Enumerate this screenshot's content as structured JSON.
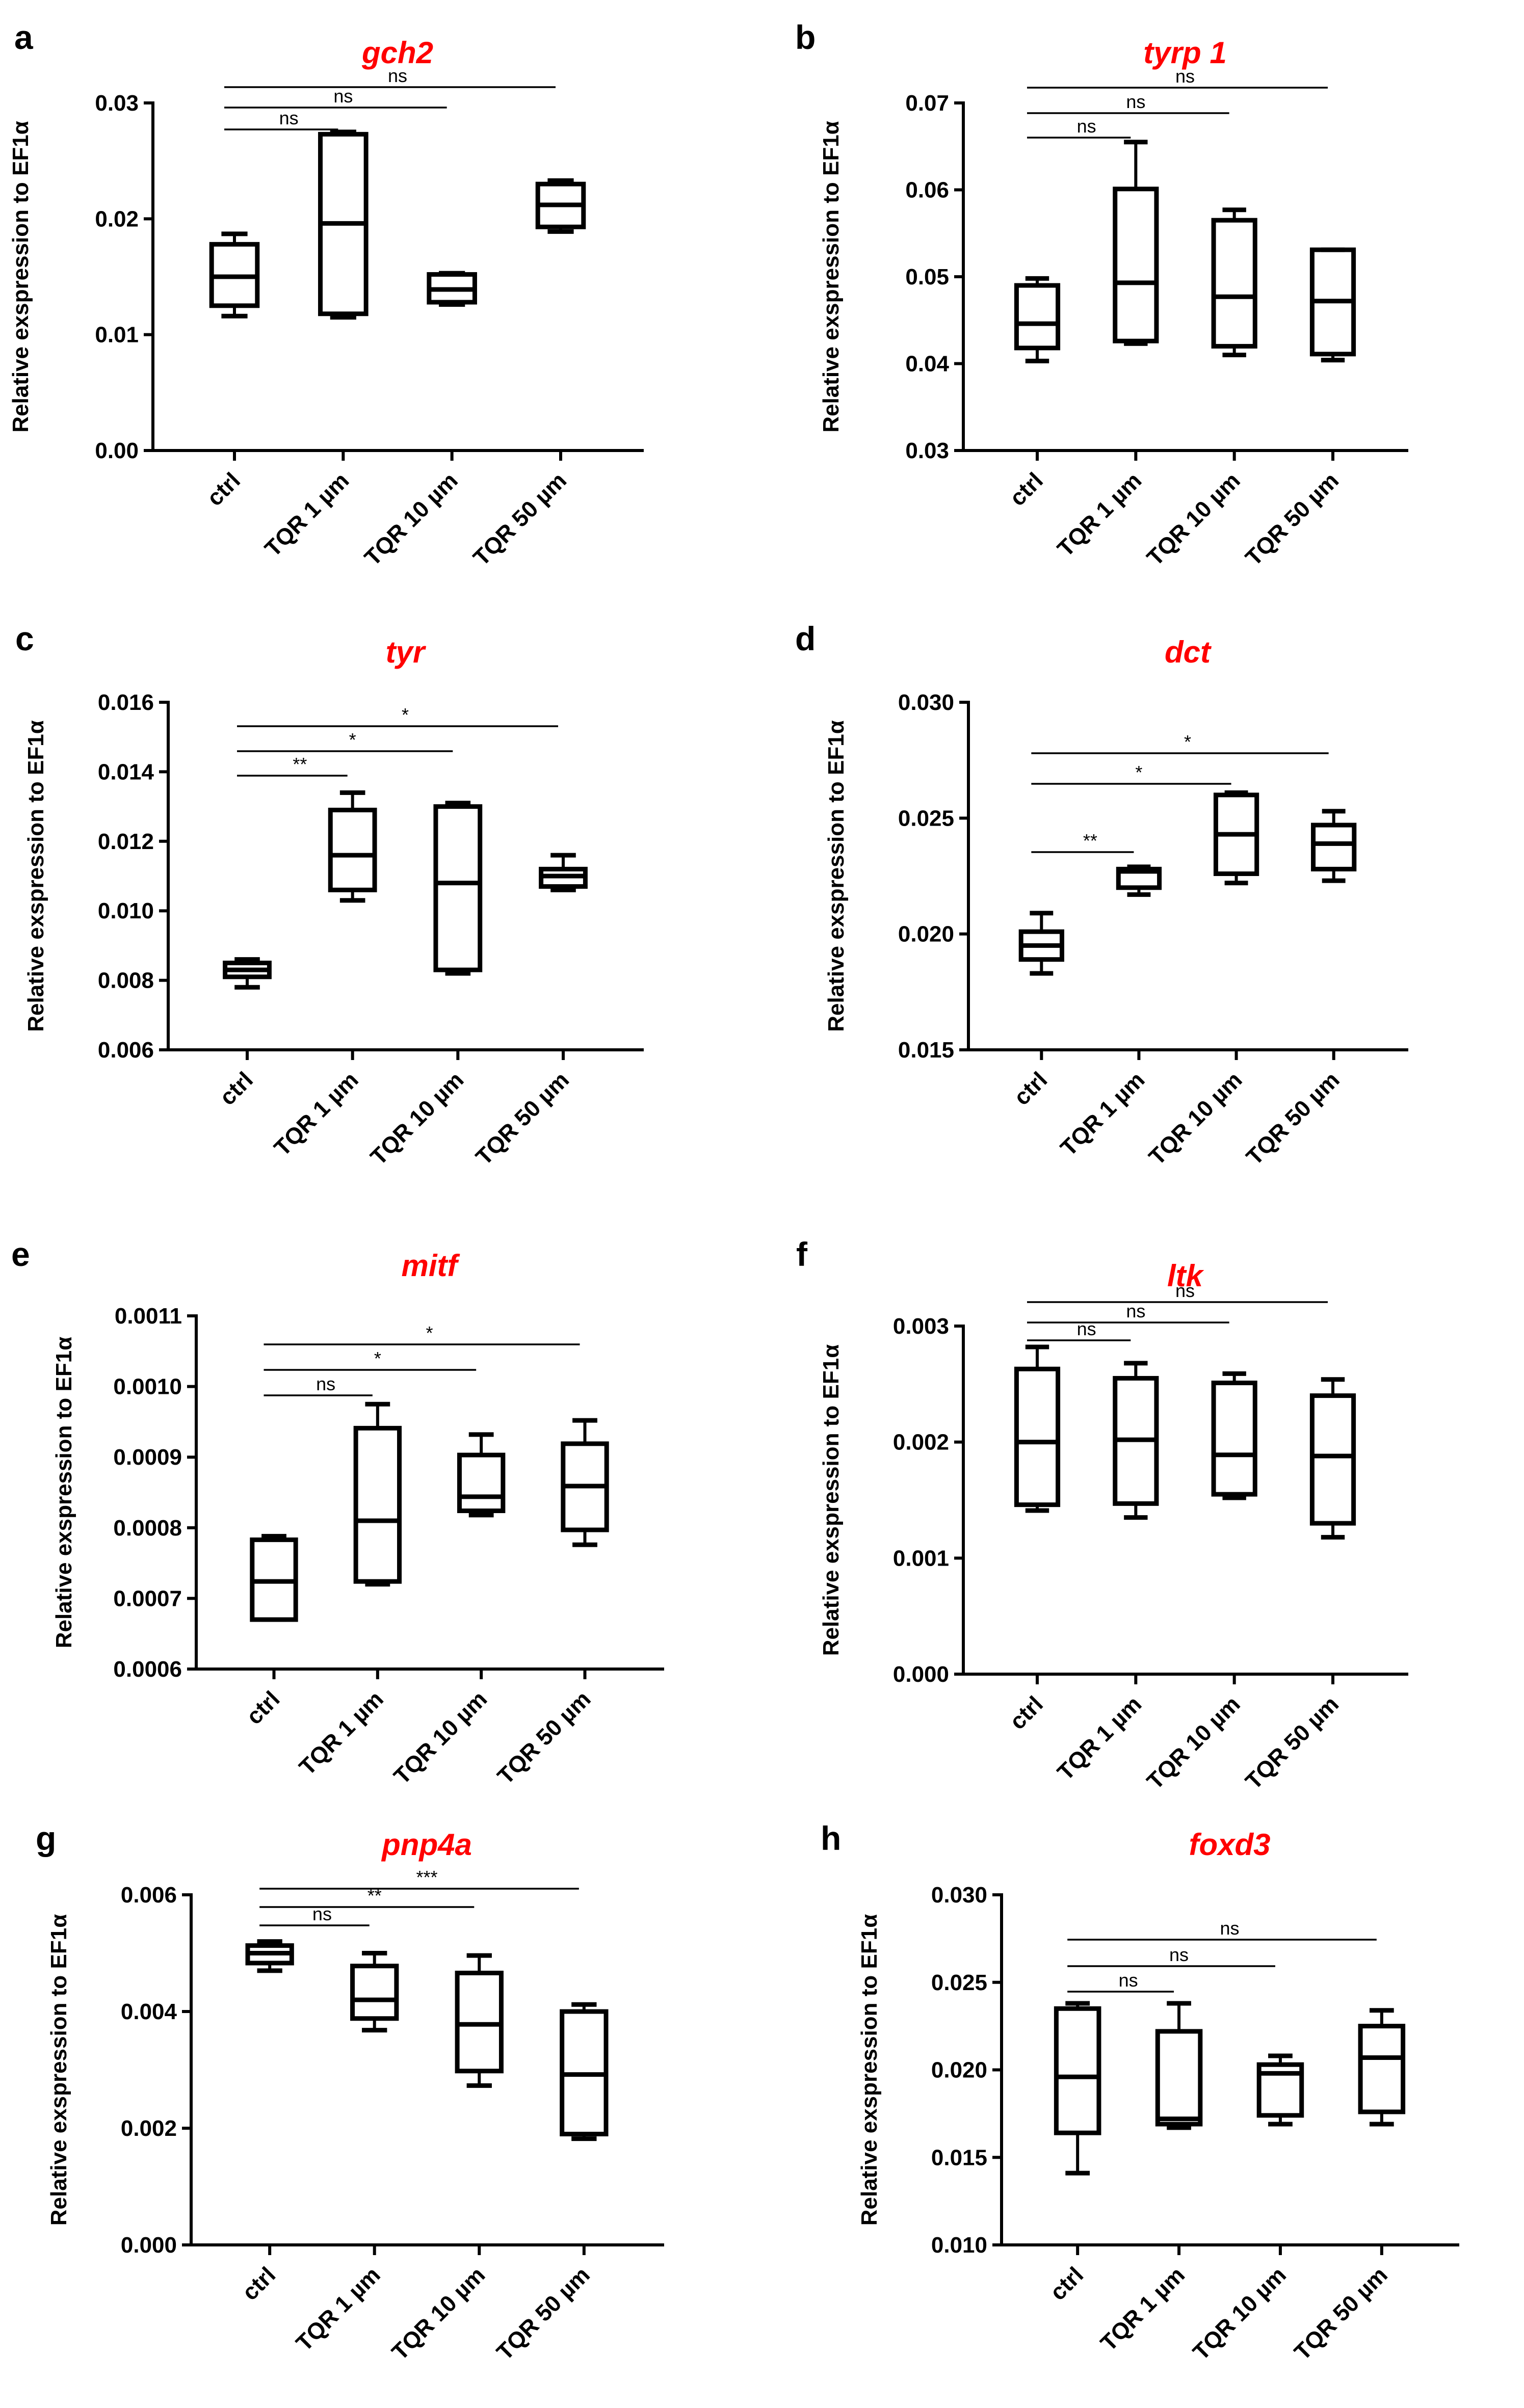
{
  "figure": {
    "title_color": "#ff0000"
  },
  "chart_data": [
    {
      "panel": "a",
      "type": "box",
      "title": "gch2",
      "ylabel": "Relative exspression to EF1α",
      "categories": [
        "ctrl",
        "TQR 1 µm",
        "TQR 10 µm",
        "TQR 50 µm"
      ],
      "ylim": [
        0,
        0.03
      ],
      "yticks": [
        0,
        0.01,
        0.02,
        0.03
      ],
      "ytick_labels": [
        "0.00",
        "0.01",
        "0.02",
        "0.03"
      ],
      "series": [
        {
          "name": "ctrl",
          "min": 0.0116,
          "q1": 0.0125,
          "median": 0.015,
          "q3": 0.0178,
          "max": 0.0187
        },
        {
          "name": "TQR 1 µm",
          "min": 0.0115,
          "q1": 0.0118,
          "median": 0.0196,
          "q3": 0.0273,
          "max": 0.0275
        },
        {
          "name": "TQR 10 µm",
          "min": 0.0126,
          "q1": 0.0128,
          "median": 0.0139,
          "q3": 0.0152,
          "max": 0.0153
        },
        {
          "name": "TQR 50 µm",
          "min": 0.0189,
          "q1": 0.0193,
          "median": 0.0212,
          "q3": 0.023,
          "max": 0.0233
        }
      ],
      "comparisons": [
        {
          "from": "ctrl",
          "to": "TQR 1 µm",
          "label": "ns"
        },
        {
          "from": "ctrl",
          "to": "TQR 10 µm",
          "label": "ns"
        },
        {
          "from": "ctrl",
          "to": "TQR 50 µm",
          "label": "ns"
        }
      ]
    },
    {
      "panel": "b",
      "type": "box",
      "title": "tyrp 1",
      "ylabel": "Relative exspression to EF1α",
      "categories": [
        "ctrl",
        "TQR 1 µm",
        "TQR 10 µm",
        "TQR 50 µm"
      ],
      "ylim": [
        0.03,
        0.07
      ],
      "yticks": [
        0.03,
        0.04,
        0.05,
        0.06,
        0.07
      ],
      "ytick_labels": [
        "0.03",
        "0.04",
        "0.05",
        "0.06",
        "0.07"
      ],
      "series": [
        {
          "name": "ctrl",
          "min": 0.0403,
          "q1": 0.0418,
          "median": 0.0446,
          "q3": 0.049,
          "max": 0.0498
        },
        {
          "name": "TQR 1 µm",
          "min": 0.0423,
          "q1": 0.0426,
          "median": 0.0493,
          "q3": 0.0601,
          "max": 0.0655
        },
        {
          "name": "TQR 10 µm",
          "min": 0.041,
          "q1": 0.042,
          "median": 0.0477,
          "q3": 0.0565,
          "max": 0.0577
        },
        {
          "name": "TQR 50 µm",
          "min": 0.0404,
          "q1": 0.0411,
          "median": 0.0472,
          "q3": 0.0531,
          "max": 0.0531
        }
      ],
      "comparisons": [
        {
          "from": "ctrl",
          "to": "TQR 1 µm",
          "label": "ns"
        },
        {
          "from": "ctrl",
          "to": "TQR 10 µm",
          "label": "ns"
        },
        {
          "from": "ctrl",
          "to": "TQR 50 µm",
          "label": "ns"
        }
      ]
    },
    {
      "panel": "c",
      "type": "box",
      "title": "tyr",
      "ylabel": "Relative exspression to EF1α",
      "categories": [
        "ctrl",
        "TQR 1 µm",
        "TQR 10 µm",
        "TQR 50 µm"
      ],
      "ylim": [
        0.006,
        0.016
      ],
      "yticks": [
        0.006,
        0.008,
        0.01,
        0.012,
        0.014,
        0.016
      ],
      "ytick_labels": [
        "0.006",
        "0.008",
        "0.010",
        "0.012",
        "0.014",
        "0.016"
      ],
      "series": [
        {
          "name": "ctrl",
          "min": 0.0078,
          "q1": 0.0081,
          "median": 0.0083,
          "q3": 0.0085,
          "max": 0.0086
        },
        {
          "name": "TQR 1 µm",
          "min": 0.0103,
          "q1": 0.0106,
          "median": 0.0116,
          "q3": 0.0129,
          "max": 0.0134
        },
        {
          "name": "TQR 10 µm",
          "min": 0.0082,
          "q1": 0.0083,
          "median": 0.0108,
          "q3": 0.013,
          "max": 0.0131
        },
        {
          "name": "TQR 50 µm",
          "min": 0.0106,
          "q1": 0.0107,
          "median": 0.011,
          "q3": 0.0112,
          "max": 0.0116
        }
      ],
      "comparisons": [
        {
          "from": "ctrl",
          "to": "TQR 1 µm",
          "label": "**"
        },
        {
          "from": "ctrl",
          "to": "TQR 10 µm",
          "label": "*"
        },
        {
          "from": "ctrl",
          "to": "TQR 50 µm",
          "label": "*"
        }
      ]
    },
    {
      "panel": "d",
      "type": "box",
      "title": "dct",
      "ylabel": "Relative exspression to EF1α",
      "categories": [
        "ctrl",
        "TQR 1 µm",
        "TQR 10 µm",
        "TQR 50 µm"
      ],
      "ylim": [
        0.015,
        0.03
      ],
      "yticks": [
        0.015,
        0.02,
        0.025,
        0.03
      ],
      "ytick_labels": [
        "0.015",
        "0.020",
        "0.025",
        "0.030"
      ],
      "series": [
        {
          "name": "ctrl",
          "min": 0.0183,
          "q1": 0.0189,
          "median": 0.0195,
          "q3": 0.0201,
          "max": 0.0209
        },
        {
          "name": "TQR 1 µm",
          "min": 0.0217,
          "q1": 0.022,
          "median": 0.0227,
          "q3": 0.0228,
          "max": 0.0229
        },
        {
          "name": "TQR 10 µm",
          "min": 0.0222,
          "q1": 0.0226,
          "median": 0.0243,
          "q3": 0.026,
          "max": 0.0261
        },
        {
          "name": "TQR 50 µm",
          "min": 0.0223,
          "q1": 0.0228,
          "median": 0.0239,
          "q3": 0.0247,
          "max": 0.0253
        }
      ],
      "comparisons": [
        {
          "from": "ctrl",
          "to": "TQR 1 µm",
          "label": "**"
        },
        {
          "from": "ctrl",
          "to": "TQR 10 µm",
          "label": "*"
        },
        {
          "from": "ctrl",
          "to": "TQR 50 µm",
          "label": "*"
        }
      ]
    },
    {
      "panel": "e",
      "type": "box",
      "title": "mitf",
      "ylabel": "Relative exspression to EF1α",
      "categories": [
        "ctrl",
        "TQR 1 µm",
        "TQR 10 µm",
        "TQR 50 µm"
      ],
      "ylim": [
        0.0006,
        0.0011
      ],
      "yticks": [
        0.0006,
        0.0007,
        0.0008,
        0.0009,
        0.001,
        0.0011
      ],
      "ytick_labels": [
        "0.0006",
        "0.0007",
        "0.0008",
        "0.0009",
        "0.0010",
        "0.0011"
      ],
      "series": [
        {
          "name": "ctrl",
          "min": 0.00067,
          "q1": 0.00067,
          "median": 0.000724,
          "q3": 0.000783,
          "max": 0.000788
        },
        {
          "name": "TQR 1 µm",
          "min": 0.00072,
          "q1": 0.000724,
          "median": 0.00081,
          "q3": 0.000941,
          "max": 0.000975
        },
        {
          "name": "TQR 10 µm",
          "min": 0.000818,
          "q1": 0.000824,
          "median": 0.000844,
          "q3": 0.000903,
          "max": 0.000932
        },
        {
          "name": "TQR 50 µm",
          "min": 0.000776,
          "q1": 0.000797,
          "median": 0.000859,
          "q3": 0.000919,
          "max": 0.000952
        }
      ],
      "comparisons": [
        {
          "from": "ctrl",
          "to": "TQR 1 µm",
          "label": "ns"
        },
        {
          "from": "ctrl",
          "to": "TQR 10 µm",
          "label": "*"
        },
        {
          "from": "ctrl",
          "to": "TQR 50 µm",
          "label": "*"
        }
      ]
    },
    {
      "panel": "f",
      "type": "box",
      "title": "ltk",
      "ylabel": "Relative exspression to EF1α",
      "categories": [
        "ctrl",
        "TQR 1 µm",
        "TQR 10 µm",
        "TQR 50 µm"
      ],
      "ylim": [
        0,
        0.003
      ],
      "yticks": [
        0,
        0.001,
        0.002,
        0.003
      ],
      "ytick_labels": [
        "0.000",
        "0.001",
        "0.002",
        "0.003"
      ],
      "series": [
        {
          "name": "ctrl",
          "min": 0.00141,
          "q1": 0.00146,
          "median": 0.002,
          "q3": 0.00263,
          "max": 0.00282
        },
        {
          "name": "TQR 1 µm",
          "min": 0.00135,
          "q1": 0.00147,
          "median": 0.00202,
          "q3": 0.00255,
          "max": 0.00268
        },
        {
          "name": "TQR 10 µm",
          "min": 0.00152,
          "q1": 0.00155,
          "median": 0.00189,
          "q3": 0.00251,
          "max": 0.00259
        },
        {
          "name": "TQR 50 µm",
          "min": 0.00118,
          "q1": 0.0013,
          "median": 0.00188,
          "q3": 0.0024,
          "max": 0.00254
        }
      ],
      "comparisons": [
        {
          "from": "ctrl",
          "to": "TQR 1 µm",
          "label": "ns"
        },
        {
          "from": "ctrl",
          "to": "TQR 10 µm",
          "label": "ns"
        },
        {
          "from": "ctrl",
          "to": "TQR 50 µm",
          "label": "ns"
        }
      ]
    },
    {
      "panel": "g",
      "type": "box",
      "title": "pnp4a",
      "ylabel": "Relative exspression to EF1α",
      "categories": [
        "ctrl",
        "TQR 1 µm",
        "TQR 10 µm",
        "TQR 50 µm"
      ],
      "ylim": [
        0,
        0.006
      ],
      "yticks": [
        0,
        0.002,
        0.004,
        0.006
      ],
      "ytick_labels": [
        "0.000",
        "0.002",
        "0.004",
        "0.006"
      ],
      "series": [
        {
          "name": "ctrl",
          "min": 0.0047,
          "q1": 0.00483,
          "median": 0.005,
          "q3": 0.00513,
          "max": 0.0052
        },
        {
          "name": "TQR 1 µm",
          "min": 0.00368,
          "q1": 0.00388,
          "median": 0.0042,
          "q3": 0.00478,
          "max": 0.005
        },
        {
          "name": "TQR 10 µm",
          "min": 0.00273,
          "q1": 0.00298,
          "median": 0.00378,
          "q3": 0.00466,
          "max": 0.00496
        },
        {
          "name": "TQR 50 µm",
          "min": 0.00182,
          "q1": 0.0019,
          "median": 0.00292,
          "q3": 0.004,
          "max": 0.00412
        }
      ],
      "comparisons": [
        {
          "from": "ctrl",
          "to": "TQR 1 µm",
          "label": "ns"
        },
        {
          "from": "ctrl",
          "to": "TQR 10 µm",
          "label": "**"
        },
        {
          "from": "ctrl",
          "to": "TQR 50 µm",
          "label": "***"
        }
      ]
    },
    {
      "panel": "h",
      "type": "box",
      "title": "foxd3",
      "ylabel": "Relative exspression to EF1α",
      "categories": [
        "ctrl",
        "TQR 1 µm",
        "TQR 10 µm",
        "TQR 50 µm"
      ],
      "ylim": [
        0.01,
        0.03
      ],
      "yticks": [
        0.01,
        0.015,
        0.02,
        0.025,
        0.03
      ],
      "ytick_labels": [
        "0.010",
        "0.015",
        "0.020",
        "0.025",
        "0.030"
      ],
      "series": [
        {
          "name": "ctrl",
          "min": 0.0141,
          "q1": 0.0164,
          "median": 0.0196,
          "q3": 0.0235,
          "max": 0.0238
        },
        {
          "name": "TQR 1 µm",
          "min": 0.0167,
          "q1": 0.0169,
          "median": 0.0172,
          "q3": 0.0222,
          "max": 0.0238
        },
        {
          "name": "TQR 10 µm",
          "min": 0.0169,
          "q1": 0.0174,
          "median": 0.0198,
          "q3": 0.0203,
          "max": 0.0208
        },
        {
          "name": "TQR 50 µm",
          "min": 0.0169,
          "q1": 0.0176,
          "median": 0.0207,
          "q3": 0.0225,
          "max": 0.0234
        }
      ],
      "comparisons": [
        {
          "from": "ctrl",
          "to": "TQR 1 µm",
          "label": "ns"
        },
        {
          "from": "ctrl",
          "to": "TQR 10 µm",
          "label": "ns"
        },
        {
          "from": "ctrl",
          "to": "TQR 50 µm",
          "label": "ns"
        }
      ]
    }
  ]
}
